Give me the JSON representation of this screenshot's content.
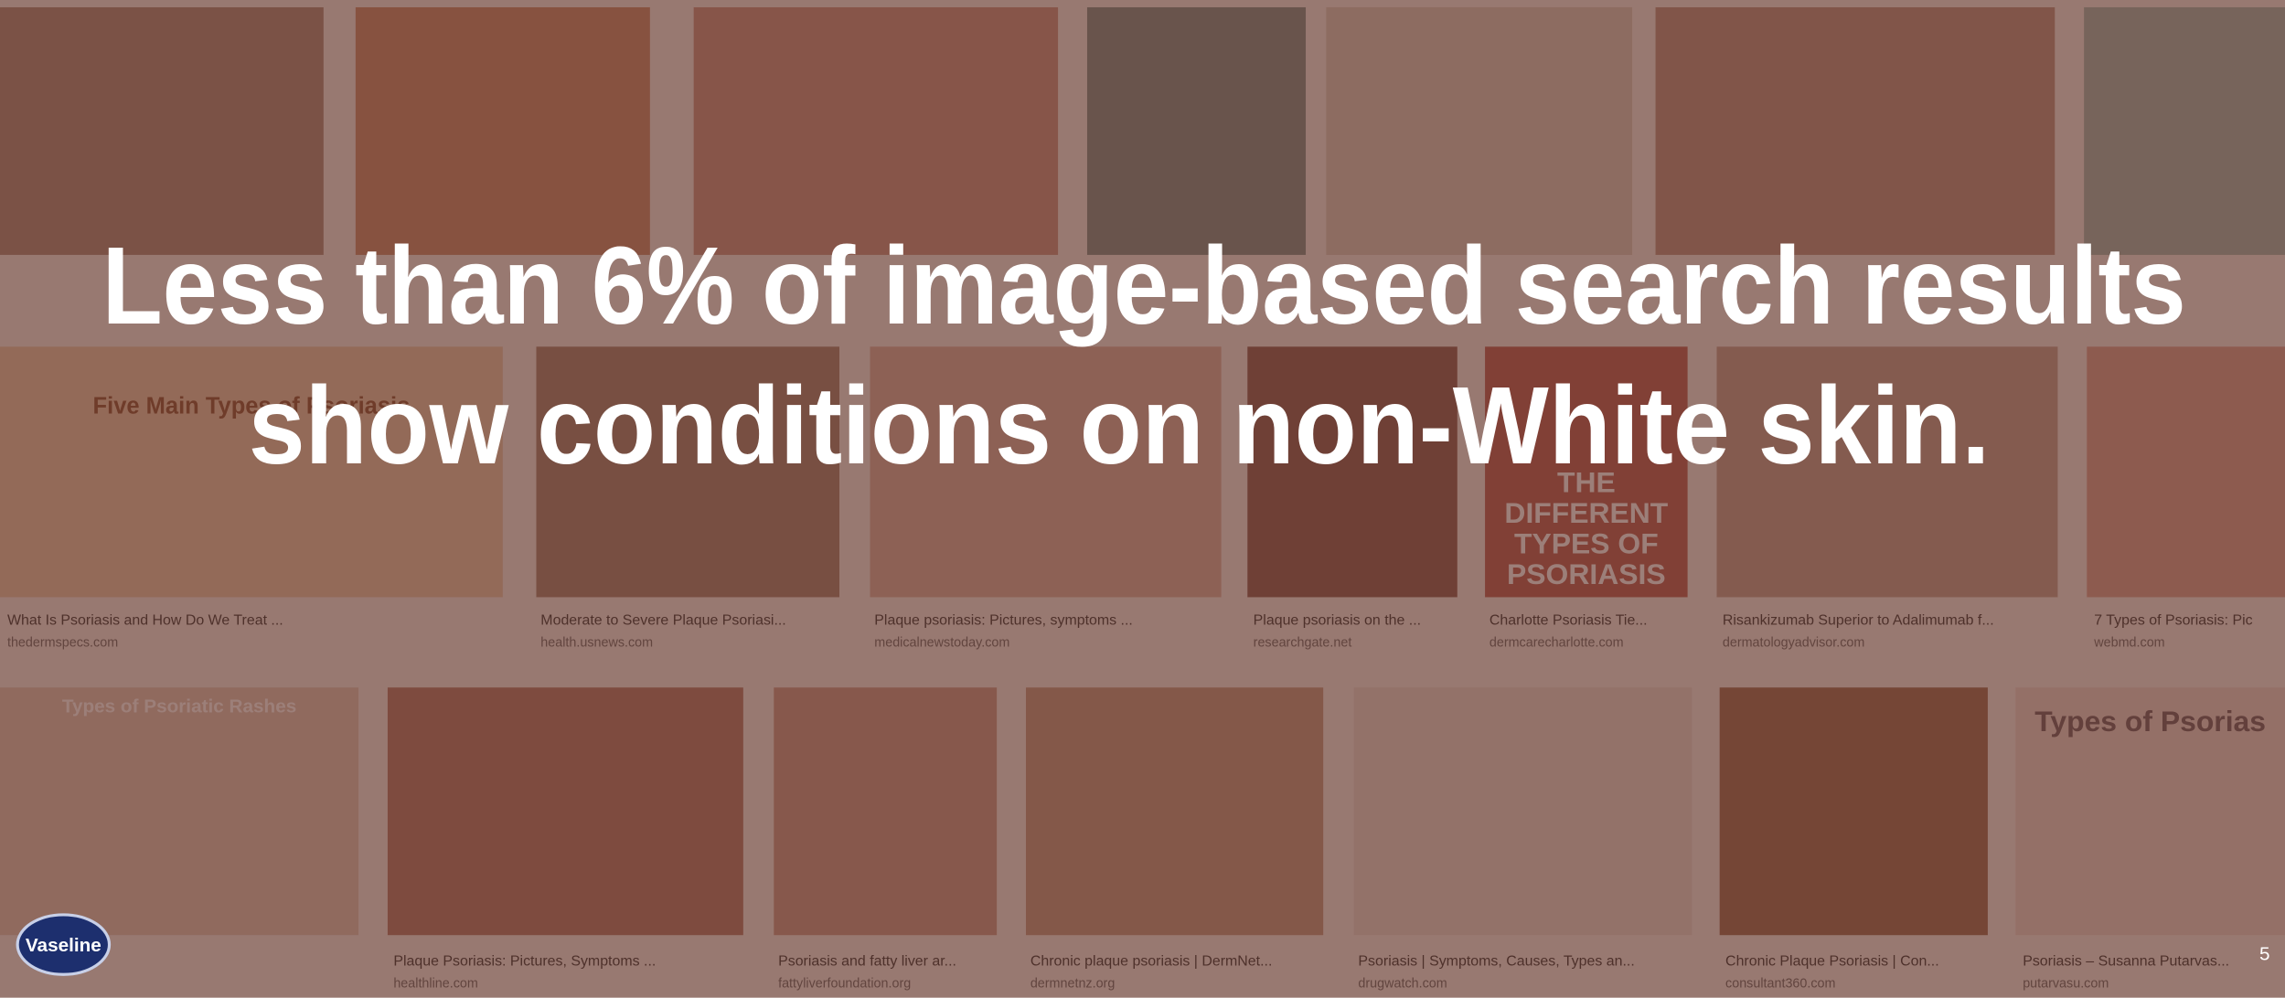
{
  "slide": {
    "headline": [
      "Less than 6% of image-based search results",
      "show conditions on non-White skin."
    ],
    "logo": "Vaseline",
    "page_number": "5"
  },
  "background": {
    "tile_texts": [
      "Five Main Types of Psoriasis",
      "THE DIFFERENT TYPES OF PSORIASIS",
      "Types of Psoriatic Rashes",
      "Types of Psorias"
    ],
    "results": [
      {
        "caption": "What Is Psoriasis and How Do We Treat ...",
        "source": "thedermspecs.com"
      },
      {
        "caption": "Moderate to Severe Plaque Psoriasi...",
        "source": "health.usnews.com"
      },
      {
        "caption": "Plaque psoriasis: Pictures, symptoms ...",
        "source": "medicalnewstoday.com"
      },
      {
        "caption": "Plaque psoriasis on the ...",
        "source": "researchgate.net"
      },
      {
        "caption": "Charlotte Psoriasis Tie...",
        "source": "dermcarecharlotte.com"
      },
      {
        "caption": "Risankizumab Superior to Adalimumab f...",
        "source": "dermatologyadvisor.com"
      },
      {
        "caption": "7 Types of Psoriasis: Pic",
        "source": "webmd.com"
      },
      {
        "caption": "Plaque Psoriasis: Pictures, Symptoms ...",
        "source": "healthline.com"
      },
      {
        "caption": "Psoriasis and fatty liver ar...",
        "source": "fattyliverfoundation.org"
      },
      {
        "caption": "Chronic plaque psoriasis | DermNet...",
        "source": "dermnetnz.org"
      },
      {
        "caption": "Psoriasis | Symptoms, Causes, Types an...",
        "source": "drugwatch.com"
      },
      {
        "caption": "Chronic Plaque Psoriasis | Con...",
        "source": "consultant360.com"
      },
      {
        "caption": "Psoriasis – Susanna Putarvas...",
        "source": "putarvasu.com"
      }
    ]
  }
}
